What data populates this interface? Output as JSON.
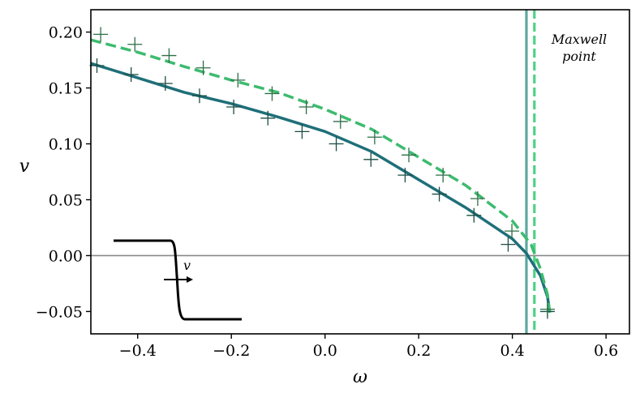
{
  "chart_data": {
    "type": "line",
    "xlabel": "ω",
    "ylabel": "v",
    "xlim": [
      -0.5,
      0.65
    ],
    "ylim": [
      -0.07,
      0.22
    ],
    "xticks": [
      -0.4,
      -0.2,
      0.0,
      0.2,
      0.4,
      0.6
    ],
    "yticks": [
      -0.05,
      0.0,
      0.05,
      0.1,
      0.15,
      0.2
    ],
    "xtick_labels": [
      "−0.4",
      "−0.2",
      "0.0",
      "0.2",
      "0.4",
      "0.6"
    ],
    "ytick_labels": [
      "−0.05",
      "0.00",
      "0.05",
      "0.10",
      "0.15",
      "0.20"
    ],
    "grid": false,
    "legend": "none",
    "series": [
      {
        "style": "solid",
        "color": "#1f6f78",
        "x": [
          -0.5,
          -0.4,
          -0.3,
          -0.2,
          -0.1,
          0.0,
          0.1,
          0.2,
          0.3,
          0.4,
          0.43,
          0.46,
          0.475,
          0.48
        ],
        "y": [
          0.172,
          0.159,
          0.146,
          0.136,
          0.124,
          0.111,
          0.093,
          0.068,
          0.043,
          0.015,
          0.002,
          -0.018,
          -0.037,
          -0.051
        ]
      },
      {
        "style": "dashed",
        "color": "#3dbb6f",
        "x": [
          -0.5,
          -0.4,
          -0.3,
          -0.2,
          -0.1,
          0.0,
          0.1,
          0.2,
          0.3,
          0.4,
          0.44,
          0.46,
          0.475,
          0.48
        ],
        "y": [
          0.193,
          0.182,
          0.169,
          0.157,
          0.146,
          0.131,
          0.113,
          0.088,
          0.063,
          0.031,
          0.01,
          -0.012,
          -0.035,
          -0.051
        ]
      }
    ],
    "markers": [
      {
        "color": "#1a4d45",
        "x": [
          -0.487,
          -0.414,
          -0.341,
          -0.268,
          -0.195,
          -0.122,
          -0.049,
          0.024,
          0.098,
          0.171,
          0.244,
          0.318,
          0.391,
          0.475
        ],
        "y": [
          0.17,
          0.162,
          0.154,
          0.143,
          0.133,
          0.123,
          0.111,
          0.1,
          0.086,
          0.072,
          0.055,
          0.036,
          0.01,
          -0.05
        ]
      },
      {
        "color": "#2d6e45",
        "x": [
          -0.479,
          -0.406,
          -0.333,
          -0.26,
          -0.186,
          -0.113,
          -0.04,
          0.033,
          0.106,
          0.179,
          0.252,
          0.326,
          0.399,
          0.475
        ],
        "y": [
          0.198,
          0.189,
          0.179,
          0.168,
          0.157,
          0.145,
          0.133,
          0.12,
          0.106,
          0.09,
          0.072,
          0.051,
          0.022,
          -0.048
        ]
      }
    ],
    "vlines": [
      {
        "x": 0.43,
        "color": "#5ea89f",
        "style": "solid"
      },
      {
        "x": 0.447,
        "color": "#4fd184",
        "style": "dashed"
      }
    ],
    "hline": {
      "y": 0.0,
      "color": "#888888"
    },
    "annotations": {
      "maxwell_line1": "Maxwell",
      "maxwell_line2": "point"
    },
    "inset": {
      "label": "v"
    }
  }
}
